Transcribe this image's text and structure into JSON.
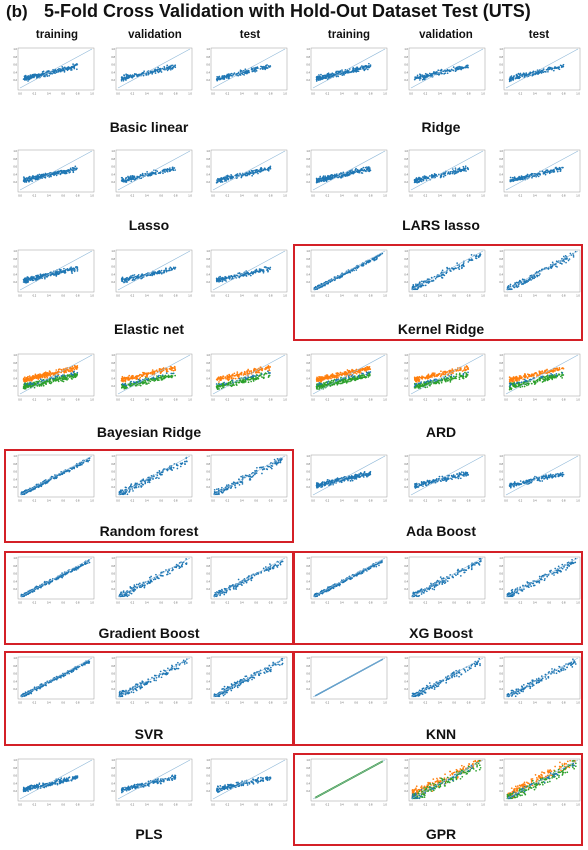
{
  "panel_letter": "(b)",
  "title": "5-Fold Cross Validation with Hold-Out Dataset Test (UTS)",
  "columns": [
    "training",
    "validation",
    "test",
    "training",
    "validation",
    "test"
  ],
  "colors": {
    "points_primary": "#1f77b4",
    "points_secondary": "#ff7f0e",
    "points_tertiary": "#2ca02c",
    "diagonal": "#8fb8d8",
    "highlight": "#d42027"
  },
  "chart_data": {
    "type": "scatter",
    "x_ticks": [
      "0.0",
      "0.2",
      "0.4",
      "0.6",
      "0.8",
      "1.0"
    ],
    "y_ticks": [
      "0.2",
      "0.4",
      "0.6",
      "0.8",
      "1.0"
    ],
    "xlim": [
      0,
      1
    ],
    "ylim": [
      0,
      1
    ],
    "reference_line": "y = x",
    "models": [
      {
        "label": "Basic linear",
        "highlighted": false,
        "series_count": 1,
        "fit_quality": "poor"
      },
      {
        "label": "Ridge",
        "highlighted": false,
        "series_count": 1,
        "fit_quality": "poor"
      },
      {
        "label": "Lasso",
        "highlighted": false,
        "series_count": 1,
        "fit_quality": "poor"
      },
      {
        "label": "LARS lasso",
        "highlighted": false,
        "series_count": 1,
        "fit_quality": "poor"
      },
      {
        "label": "Elastic net",
        "highlighted": false,
        "series_count": 1,
        "fit_quality": "poor"
      },
      {
        "label": "Kernel Ridge",
        "highlighted": true,
        "series_count": 1,
        "fit_quality": "good"
      },
      {
        "label": "Bayesian Ridge",
        "highlighted": false,
        "series_count": 3,
        "fit_quality": "poor"
      },
      {
        "label": "ARD",
        "highlighted": false,
        "series_count": 3,
        "fit_quality": "poor"
      },
      {
        "label": "Random forest",
        "highlighted": true,
        "series_count": 1,
        "fit_quality": "good"
      },
      {
        "label": "Ada Boost",
        "highlighted": false,
        "series_count": 1,
        "fit_quality": "poor"
      },
      {
        "label": "Gradient Boost",
        "highlighted": true,
        "series_count": 1,
        "fit_quality": "good"
      },
      {
        "label": "XG Boost",
        "highlighted": true,
        "series_count": 1,
        "fit_quality": "good"
      },
      {
        "label": "SVR",
        "highlighted": true,
        "series_count": 1,
        "fit_quality": "good"
      },
      {
        "label": "KNN",
        "highlighted": true,
        "series_count": 1,
        "fit_quality": "good"
      },
      {
        "label": "PLS",
        "highlighted": false,
        "series_count": 1,
        "fit_quality": "poor"
      },
      {
        "label": "GPR",
        "highlighted": true,
        "series_count": 3,
        "fit_quality": "good"
      }
    ]
  }
}
